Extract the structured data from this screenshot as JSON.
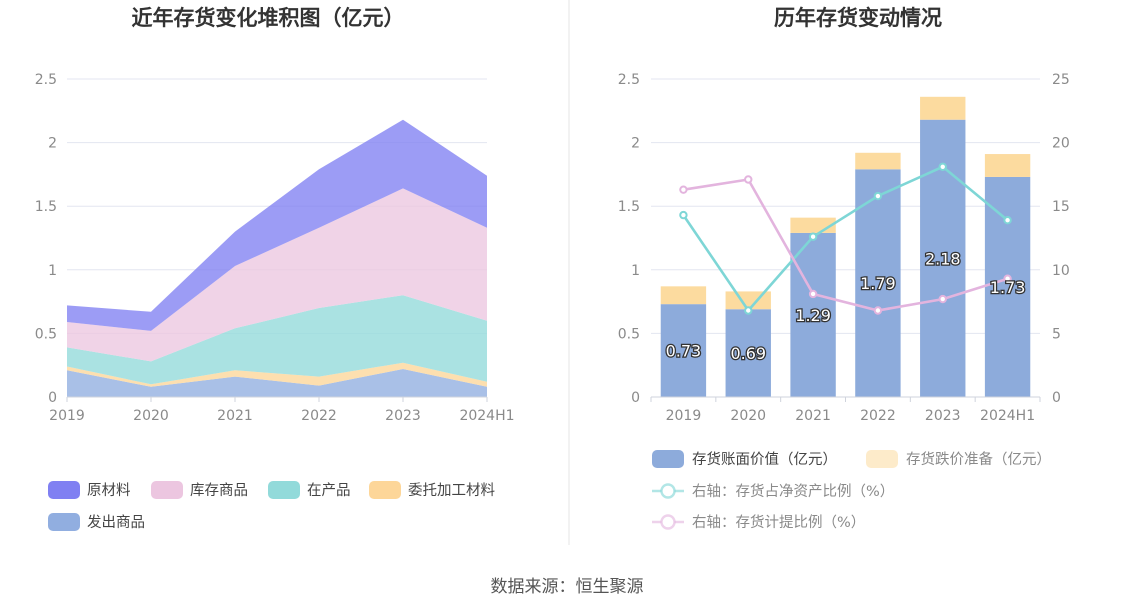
{
  "footer": {
    "source": "数据来源：恒生聚源"
  },
  "colors": {
    "raw": "#8080f2",
    "finished": "#ecc6e0",
    "wip": "#92dada",
    "consigned": "#fdd699",
    "dispatched": "#91aee0",
    "bar_book": "#8dabdb",
    "bar_provision": "#fcdb9f",
    "line_ratio": "#7ed6d6",
    "line_provision": "#e3b4de"
  },
  "chart_data": [
    {
      "type": "area",
      "title": "近年存货变化堆积图（亿元）",
      "categories": [
        "2019",
        "2020",
        "2021",
        "2022",
        "2023",
        "2024H1"
      ],
      "ylim": [
        0,
        2.5
      ],
      "yticks": [
        "0",
        "0.5",
        "1",
        "1.5",
        "2",
        "2.5"
      ],
      "legend_position": "bottom",
      "series": [
        {
          "name": "发出商品",
          "key": "dispatched",
          "values": [
            0.21,
            0.08,
            0.16,
            0.09,
            0.22,
            0.08
          ]
        },
        {
          "name": "委托加工材料",
          "key": "consigned",
          "values": [
            0.03,
            0.02,
            0.05,
            0.07,
            0.05,
            0.04
          ]
        },
        {
          "name": "在产品",
          "key": "wip",
          "values": [
            0.15,
            0.18,
            0.33,
            0.54,
            0.53,
            0.48
          ]
        },
        {
          "name": "库存商品",
          "key": "finished",
          "values": [
            0.2,
            0.24,
            0.49,
            0.63,
            0.84,
            0.73
          ]
        },
        {
          "name": "原材料",
          "key": "raw",
          "values": [
            0.13,
            0.15,
            0.27,
            0.46,
            0.54,
            0.41
          ]
        }
      ],
      "legend_order": [
        "raw",
        "finished",
        "wip",
        "consigned",
        "dispatched"
      ]
    },
    {
      "type": "bar",
      "title": "历年存货变动情况",
      "categories": [
        "2019",
        "2020",
        "2021",
        "2022",
        "2023",
        "2024H1"
      ],
      "ylim": [
        0,
        2.5
      ],
      "yticks": [
        "0",
        "0.5",
        "1",
        "1.5",
        "2",
        "2.5"
      ],
      "y2lim": [
        0,
        25
      ],
      "y2ticks": [
        "0",
        "5",
        "10",
        "15",
        "20",
        "25"
      ],
      "legend_position": "bottom",
      "series": [
        {
          "name": "存货账面价值（亿元）",
          "key": "bar_book",
          "kind": "bar",
          "values": [
            0.73,
            0.69,
            1.29,
            1.79,
            2.18,
            1.73
          ],
          "labels": [
            "0.73",
            "0.69",
            "1.29",
            "1.79",
            "2.18",
            "1.73"
          ]
        },
        {
          "name": "存货跌价准备（亿元）",
          "key": "bar_provision",
          "kind": "bar",
          "values": [
            0.14,
            0.14,
            0.12,
            0.13,
            0.18,
            0.18
          ]
        },
        {
          "name": "右轴：存货占净资产比例（%）",
          "key": "line_ratio",
          "kind": "line",
          "values": [
            14.3,
            6.8,
            12.6,
            15.8,
            18.1,
            13.9
          ]
        },
        {
          "name": "右轴：存货计提比例（%）",
          "key": "line_provision",
          "kind": "line",
          "values": [
            16.3,
            17.1,
            8.1,
            6.8,
            7.7,
            9.3
          ]
        }
      ]
    }
  ]
}
